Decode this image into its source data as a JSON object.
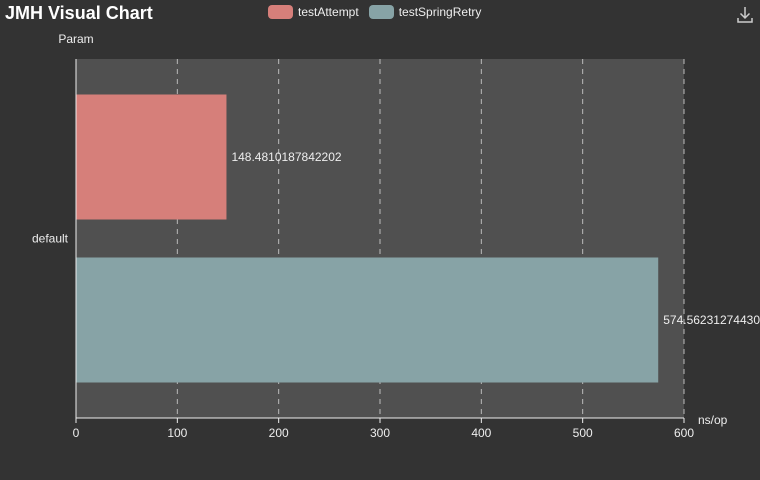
{
  "title": "JMH Visual Chart",
  "toolbox": {
    "download_icon": "download-icon"
  },
  "colors": {
    "background": "#333333",
    "plot_area": "#505050",
    "grid": "#bbbbbb",
    "axis": "#eeeeee",
    "text": "#eeeeee"
  },
  "chart_data": {
    "type": "bar",
    "orientation": "horizontal",
    "categories": [
      "default"
    ],
    "series": [
      {
        "name": "testAttempt",
        "color": "#d67f7a",
        "values": [
          148.4810187842202
        ],
        "label": "148.4810187842202"
      },
      {
        "name": "testSpringRetry",
        "color": "#87a3a6",
        "values": [
          574.5623127443
        ],
        "label": "574.56231274430"
      }
    ],
    "xlabel": "ns/op",
    "ylabel": "Param",
    "xlim": [
      0,
      600
    ],
    "xticks": [
      "0",
      "100",
      "200",
      "300",
      "400",
      "500",
      "600"
    ],
    "grid": true,
    "legend_position": "top"
  }
}
